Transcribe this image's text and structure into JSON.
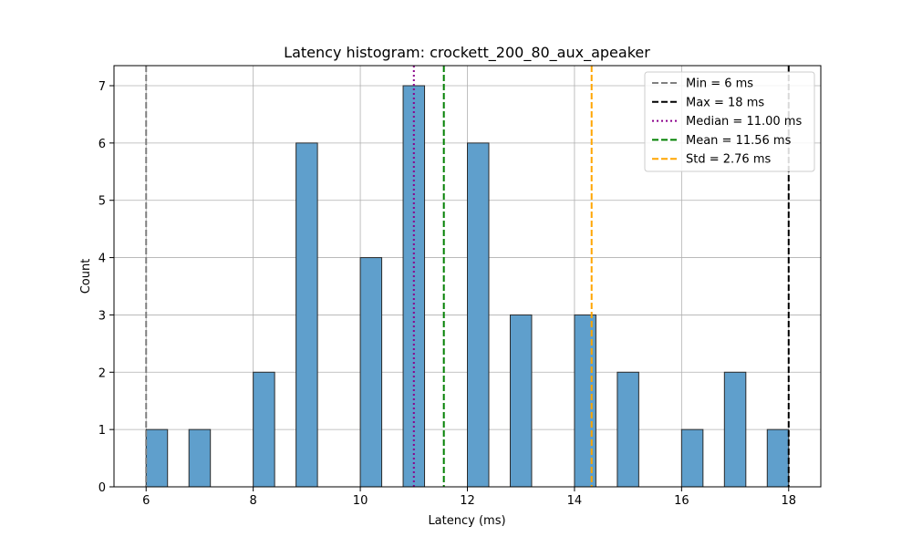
{
  "chart_data": {
    "type": "bar",
    "title": "Latency histogram: crockett_200_80_aux_apeaker",
    "xlabel": "Latency (ms)",
    "ylabel": "Count",
    "xlim": [
      5.4,
      18.6
    ],
    "ylim": [
      0,
      7.35
    ],
    "xticks": [
      6,
      8,
      10,
      12,
      14,
      16,
      18
    ],
    "yticks": [
      0,
      1,
      2,
      3,
      4,
      5,
      6,
      7
    ],
    "grid": true,
    "bar_color": "#5f9fcc",
    "bar_edge_color": "#2b2b2b",
    "bins": [
      {
        "start": 6.0,
        "end": 6.4,
        "count": 1
      },
      {
        "start": 6.8,
        "end": 7.2,
        "count": 1
      },
      {
        "start": 8.0,
        "end": 8.4,
        "count": 2
      },
      {
        "start": 8.8,
        "end": 9.2,
        "count": 6
      },
      {
        "start": 10.0,
        "end": 10.4,
        "count": 4
      },
      {
        "start": 10.8,
        "end": 11.2,
        "count": 7
      },
      {
        "start": 12.0,
        "end": 12.4,
        "count": 6
      },
      {
        "start": 12.8,
        "end": 13.2,
        "count": 3
      },
      {
        "start": 14.0,
        "end": 14.4,
        "count": 3
      },
      {
        "start": 14.8,
        "end": 15.2,
        "count": 2
      },
      {
        "start": 16.0,
        "end": 16.4,
        "count": 1
      },
      {
        "start": 16.8,
        "end": 17.2,
        "count": 2
      },
      {
        "start": 17.6,
        "end": 18.0,
        "count": 1
      }
    ],
    "reference_lines": [
      {
        "label": "Min = 6 ms",
        "x": 6,
        "color": "#808080",
        "style": "dashed"
      },
      {
        "label": "Max = 18 ms",
        "x": 18,
        "color": "#000000",
        "style": "dashed"
      },
      {
        "label": "Median = 11.00 ms",
        "x": 11.0,
        "color": "#8b008b",
        "style": "dotted"
      },
      {
        "label": "Mean = 11.56 ms",
        "x": 11.56,
        "color": "#008000",
        "style": "dashed"
      },
      {
        "label": "Std = 2.76 ms",
        "x": 14.32,
        "color": "#ffa500",
        "style": "dashed"
      }
    ],
    "legend_position": "top-right"
  }
}
